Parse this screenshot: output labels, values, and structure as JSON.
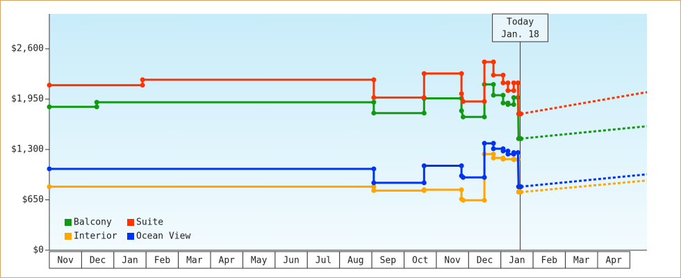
{
  "chart_data": {
    "type": "step-line",
    "categories": [
      "Nov",
      "Dec",
      "Jan",
      "Feb",
      "Mar",
      "Apr",
      "May",
      "Jun",
      "Jul",
      "Aug",
      "Sep",
      "Oct",
      "Nov",
      "Dec",
      "Jan",
      "Feb",
      "Mar",
      "Apr"
    ],
    "xlim": [
      0,
      18.53
    ],
    "ylim": [
      0,
      3050
    ],
    "yticks": [
      {
        "value": 0,
        "label": "$0"
      },
      {
        "value": 650,
        "label": "$650"
      },
      {
        "value": 1300,
        "label": "$1,300"
      },
      {
        "value": 1950,
        "label": "$1,950"
      },
      {
        "value": 2600,
        "label": "$2,600"
      }
    ],
    "annotation": {
      "x": 14.6,
      "lines": [
        "Today",
        "Jan. 18"
      ]
    },
    "series": [
      {
        "name": "Balcony",
        "color": "#119911",
        "x": [
          0,
          1.47,
          1.47,
          10.06,
          10.06,
          11.62,
          11.62,
          12.78,
          12.78,
          12.83,
          13.49,
          13.49,
          13.77,
          13.77,
          14.07,
          14.07,
          14.22,
          14.22,
          14.4,
          14.4,
          14.53,
          14.55,
          14.62
        ],
        "values": [
          1850,
          1850,
          1910,
          1910,
          1770,
          1770,
          1960,
          1960,
          1800,
          1720,
          1720,
          2140,
          2140,
          2000,
          2000,
          1900,
          1900,
          1880,
          1880,
          1970,
          1970,
          1440,
          1440
        ],
        "forecast": {
          "x": [
            14.62,
            18.53
          ],
          "values": [
            1440,
            1600
          ]
        }
      },
      {
        "name": "Suite",
        "color": "#ff3300",
        "x": [
          0,
          2.89,
          2.89,
          10.06,
          10.06,
          11.62,
          11.62,
          12.78,
          12.78,
          12.83,
          13.49,
          13.49,
          13.77,
          13.77,
          14.07,
          14.07,
          14.22,
          14.22,
          14.4,
          14.4,
          14.53,
          14.55,
          14.62
        ],
        "values": [
          2130,
          2130,
          2200,
          2200,
          1970,
          1970,
          2280,
          2280,
          2020,
          1920,
          1920,
          2430,
          2430,
          2260,
          2260,
          2160,
          2160,
          2060,
          2060,
          2160,
          2160,
          1760,
          1760
        ],
        "forecast": {
          "x": [
            14.62,
            18.53
          ],
          "values": [
            1760,
            2040
          ]
        }
      },
      {
        "name": "Interior",
        "color": "#ffa500",
        "x": [
          0,
          10.06,
          10.06,
          11.62,
          11.62,
          12.78,
          12.78,
          12.83,
          13.49,
          13.49,
          13.77,
          13.77,
          14.07,
          14.07,
          14.4,
          14.4,
          14.53,
          14.55,
          14.62
        ],
        "values": [
          820,
          820,
          770,
          770,
          780,
          780,
          660,
          645,
          645,
          1240,
          1240,
          1190,
          1190,
          1175,
          1175,
          1170,
          1170,
          750,
          750
        ],
        "forecast": {
          "x": [
            14.62,
            18.53
          ],
          "values": [
            750,
            900
          ]
        }
      },
      {
        "name": "Ocean View",
        "color": "#0033ee",
        "x": [
          0,
          10.06,
          10.06,
          11.62,
          11.62,
          12.78,
          12.78,
          12.83,
          13.49,
          13.49,
          13.77,
          13.77,
          14.07,
          14.07,
          14.22,
          14.22,
          14.4,
          14.4,
          14.53,
          14.55,
          14.62
        ],
        "values": [
          1050,
          1050,
          870,
          870,
          1090,
          1090,
          960,
          940,
          940,
          1380,
          1380,
          1310,
          1310,
          1280,
          1280,
          1240,
          1240,
          1260,
          1260,
          820,
          820
        ],
        "forecast": {
          "x": [
            14.62,
            18.53
          ],
          "values": [
            820,
            980
          ]
        }
      }
    ]
  }
}
